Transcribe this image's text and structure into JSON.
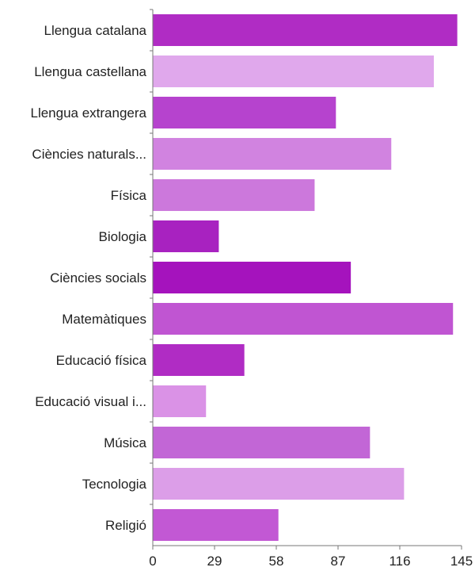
{
  "chart_data": {
    "type": "bar",
    "orientation": "horizontal",
    "categories": [
      "Llengua catalana",
      "Llengua castellana",
      "Llengua extrangera",
      "Ciències naturals...",
      "Física",
      "Biologia",
      "Ciències socials",
      "Matemàtiques",
      "Educació física",
      "Educació visual i...",
      "Música",
      "Tecnologia",
      "Religió"
    ],
    "values": [
      143,
      132,
      86,
      112,
      76,
      31,
      93,
      141,
      43,
      25,
      102,
      118,
      59
    ],
    "colors": [
      "#b02cc4",
      "#e0a8ec",
      "#b643ce",
      "#d183e0",
      "#cc78dc",
      "#a822c0",
      "#a513bd",
      "#c055d2",
      "#b02cc4",
      "#da92e6",
      "#c266d6",
      "#dc9ee8",
      "#c258d4"
    ],
    "xticks": [
      "0",
      "29",
      "58",
      "87",
      "116",
      "145"
    ],
    "xlim": [
      0,
      145
    ],
    "title": "",
    "xlabel": "",
    "ylabel": "",
    "grid": false,
    "legend": "none"
  }
}
